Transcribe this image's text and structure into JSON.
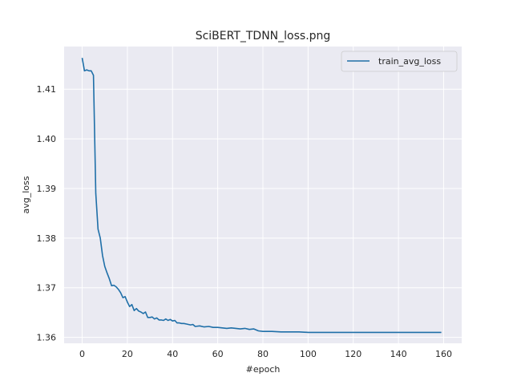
{
  "chart_data": {
    "type": "line",
    "title": "SciBERT_TDNN_loss.png",
    "xlabel": "#epoch",
    "ylabel": "avg_loss",
    "xlim": [
      -8,
      168
    ],
    "ylim": [
      1.3588,
      1.4186
    ],
    "xticks": [
      0,
      20,
      40,
      60,
      80,
      100,
      120,
      140,
      160
    ],
    "yticks": [
      1.36,
      1.37,
      1.38,
      1.39,
      1.4,
      1.41
    ],
    "ytick_labels": [
      "1.36",
      "1.37",
      "1.38",
      "1.39",
      "1.40",
      "1.41"
    ],
    "grid": true,
    "legend_position": "top-right",
    "series": [
      {
        "name": "train_avg_loss",
        "color": "#1f6fa8",
        "x": [
          0,
          1,
          2,
          3,
          4,
          5,
          6,
          7,
          8,
          9,
          10,
          11,
          12,
          13,
          14,
          15,
          16,
          17,
          18,
          19,
          20,
          21,
          22,
          23,
          24,
          25,
          26,
          27,
          28,
          29,
          30,
          31,
          32,
          33,
          34,
          35,
          36,
          37,
          38,
          39,
          40,
          41,
          42,
          43,
          44,
          45,
          46,
          47,
          48,
          49,
          50,
          52,
          54,
          56,
          58,
          60,
          62,
          64,
          66,
          68,
          70,
          72,
          74,
          76,
          78,
          80,
          84,
          88,
          92,
          96,
          100,
          110,
          120,
          130,
          140,
          150,
          159
        ],
        "y": [
          1.4163,
          1.4137,
          1.4139,
          1.4137,
          1.4137,
          1.4128,
          1.389,
          1.3818,
          1.38,
          1.3765,
          1.3743,
          1.373,
          1.3718,
          1.3704,
          1.3705,
          1.3702,
          1.3697,
          1.369,
          1.368,
          1.3682,
          1.3671,
          1.3662,
          1.3666,
          1.3654,
          1.3658,
          1.3653,
          1.3651,
          1.3648,
          1.3651,
          1.364,
          1.364,
          1.3641,
          1.3637,
          1.3639,
          1.3635,
          1.3635,
          1.3634,
          1.3637,
          1.3634,
          1.3636,
          1.3633,
          1.3634,
          1.3629,
          1.3629,
          1.3628,
          1.3628,
          1.3627,
          1.3626,
          1.3625,
          1.3626,
          1.3622,
          1.3623,
          1.3621,
          1.3622,
          1.362,
          1.362,
          1.3619,
          1.3618,
          1.3619,
          1.3618,
          1.3617,
          1.3618,
          1.3616,
          1.3617,
          1.3613,
          1.3612,
          1.3612,
          1.3611,
          1.3611,
          1.3611,
          1.361,
          1.361,
          1.361,
          1.361,
          1.361,
          1.361,
          1.361
        ]
      }
    ]
  }
}
